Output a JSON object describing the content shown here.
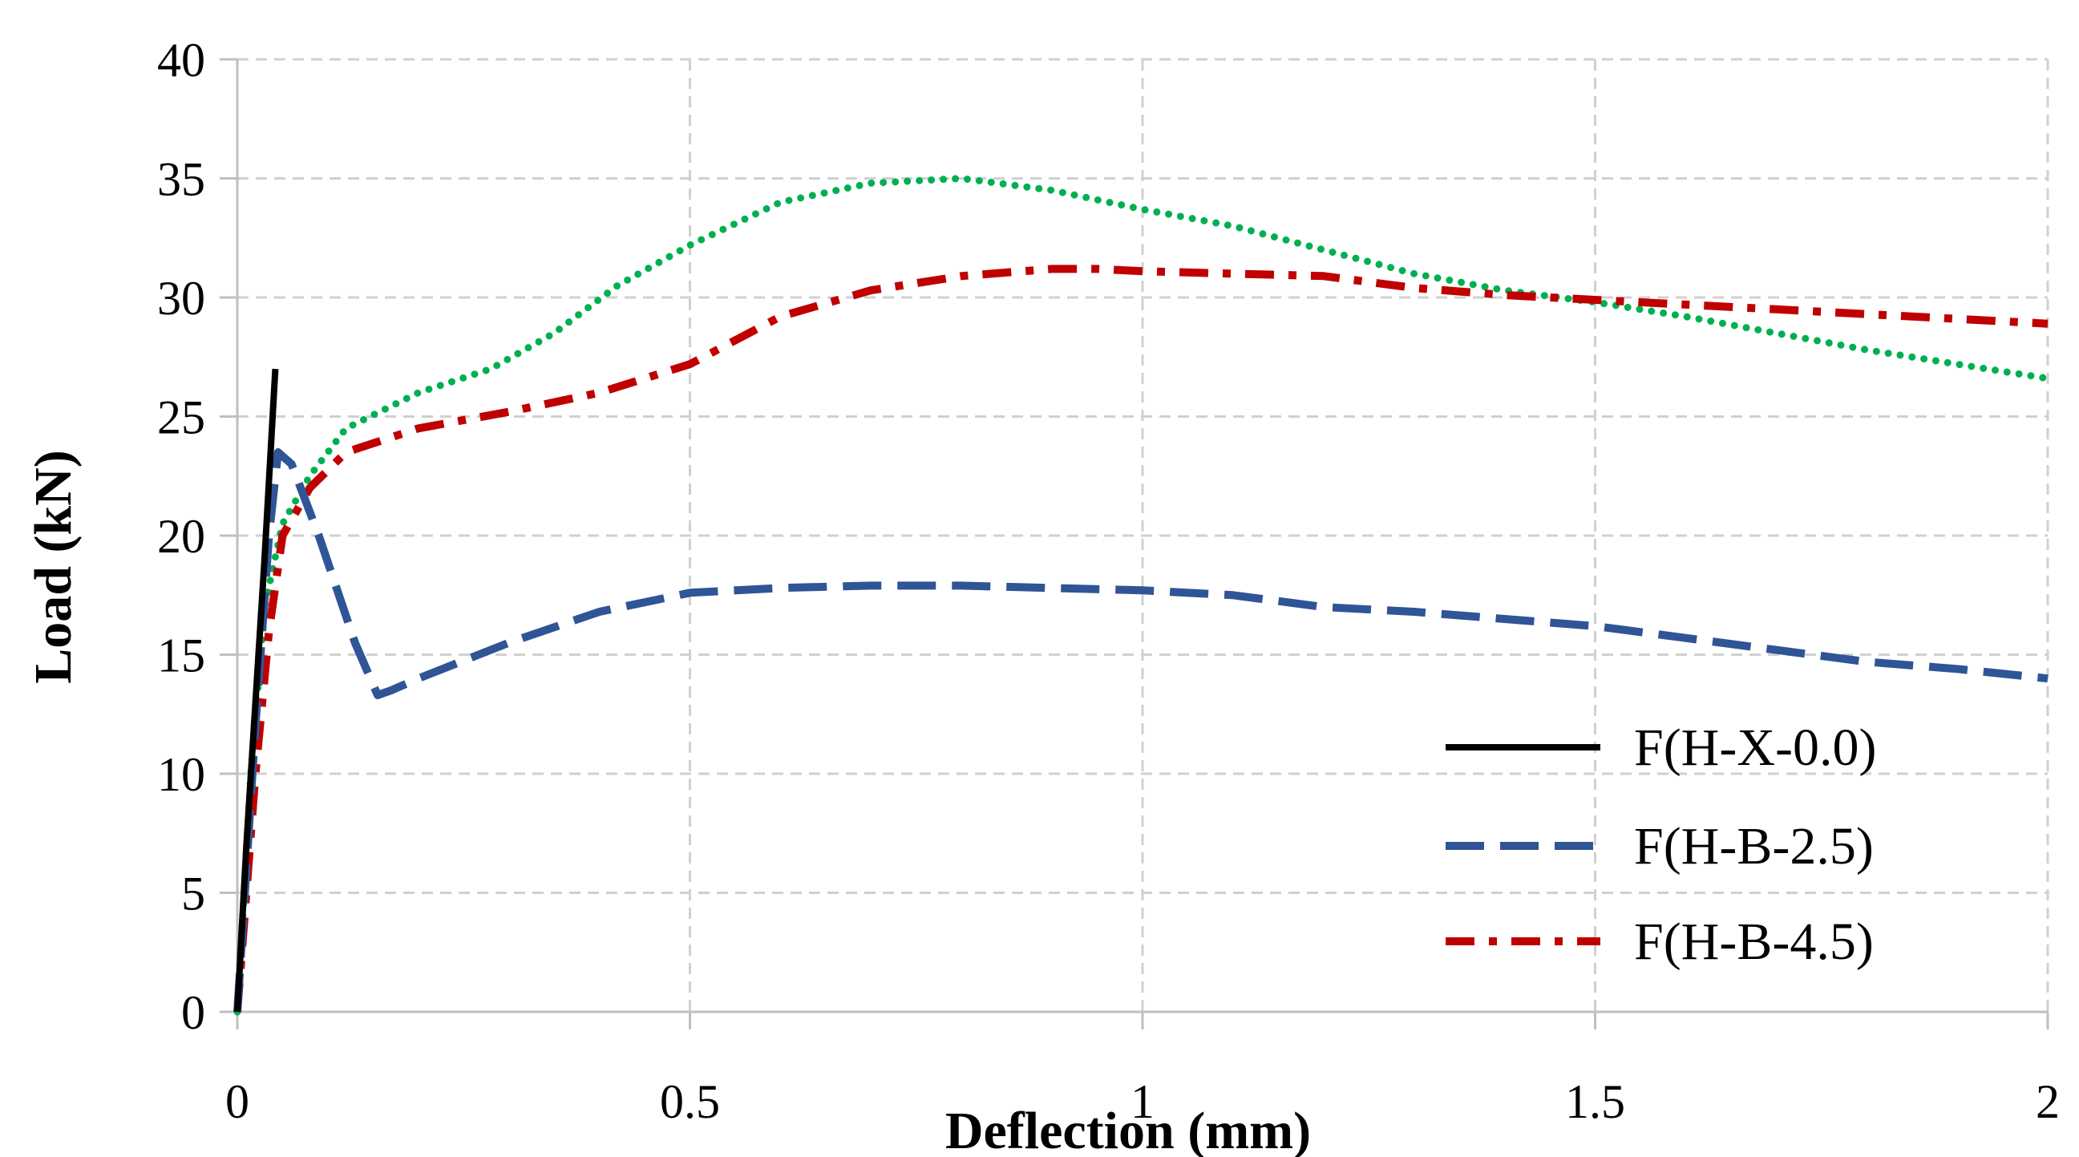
{
  "chart_data": {
    "type": "line",
    "title": "",
    "xlabel": "Deflection (mm)",
    "ylabel": "Load (kN)",
    "xlim": [
      0,
      2
    ],
    "ylim": [
      0,
      40
    ],
    "xticks": [
      0,
      0.5,
      1,
      1.5,
      2
    ],
    "xtick_labels": [
      "0",
      "0.5",
      "1",
      "1.5",
      "2"
    ],
    "yticks": [
      0,
      5,
      10,
      15,
      20,
      25,
      30,
      35,
      40
    ],
    "ytick_labels": [
      "0",
      "5",
      "10",
      "15",
      "20",
      "25",
      "30",
      "35",
      "40"
    ],
    "grid": true,
    "legend_position": "bottom-right",
    "series": [
      {
        "name": "F(H-X-0.0)",
        "color": "#000000",
        "style": "solid",
        "in_legend": true,
        "x": [
          0,
          0.01,
          0.02,
          0.03,
          0.042
        ],
        "y": [
          0,
          7,
          13,
          19,
          27
        ]
      },
      {
        "name": "F(H-B-2.5)",
        "color": "#2f5597",
        "style": "dashed",
        "in_legend": true,
        "x": [
          0,
          0.02,
          0.035,
          0.045,
          0.06,
          0.09,
          0.13,
          0.155,
          0.17,
          0.2,
          0.3,
          0.4,
          0.5,
          0.6,
          0.7,
          0.8,
          0.9,
          1.0,
          1.1,
          1.2,
          1.3,
          1.4,
          1.5,
          1.6,
          1.7,
          1.8,
          1.9,
          2.0
        ],
        "y": [
          0,
          12,
          20,
          23.5,
          23,
          20,
          15.5,
          13.3,
          13.5,
          14,
          15.5,
          16.8,
          17.6,
          17.8,
          17.9,
          17.9,
          17.8,
          17.7,
          17.5,
          17,
          16.8,
          16.5,
          16.2,
          15.7,
          15.2,
          14.7,
          14.4,
          14
        ]
      },
      {
        "name": "F(H-B-4.5)",
        "color": "#c00000",
        "style": "dashdot",
        "in_legend": true,
        "x": [
          0,
          0.02,
          0.035,
          0.05,
          0.08,
          0.12,
          0.2,
          0.3,
          0.4,
          0.5,
          0.6,
          0.7,
          0.8,
          0.9,
          0.95,
          1.0,
          1.1,
          1.2,
          1.3,
          1.4,
          1.5,
          1.6,
          1.7,
          1.8,
          1.9,
          2.0
        ],
        "y": [
          0,
          10,
          16,
          20,
          22,
          23.5,
          24.5,
          25.2,
          26,
          27.2,
          29.2,
          30.3,
          30.9,
          31.2,
          31.2,
          31.1,
          31,
          30.9,
          30.4,
          30.1,
          29.9,
          29.7,
          29.5,
          29.3,
          29.1,
          28.9
        ]
      },
      {
        "name": "",
        "color": "#00b050",
        "style": "dotted",
        "in_legend": false,
        "x": [
          0,
          0.015,
          0.03,
          0.05,
          0.08,
          0.12,
          0.2,
          0.28,
          0.35,
          0.42,
          0.5,
          0.6,
          0.7,
          0.8,
          0.9,
          1.0,
          1.1,
          1.2,
          1.3,
          1.4,
          1.5,
          1.6,
          1.7,
          1.8,
          1.9,
          2.0
        ],
        "y": [
          0,
          10,
          17,
          20.5,
          22.5,
          24.5,
          26,
          27,
          28.5,
          30.5,
          32.2,
          34,
          34.8,
          35,
          34.5,
          33.7,
          33,
          32,
          31,
          30.3,
          29.8,
          29.2,
          28.5,
          27.8,
          27.2,
          26.6
        ]
      }
    ]
  }
}
